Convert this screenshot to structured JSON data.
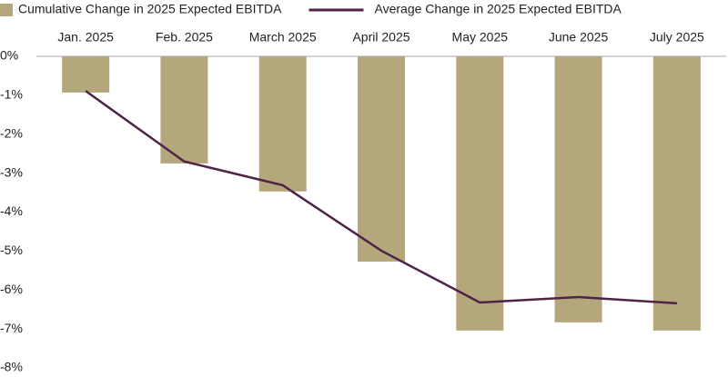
{
  "chart_data": {
    "type": "combo",
    "categories": [
      "Jan. 2025",
      "Feb. 2025",
      "March 2025",
      "April 2025",
      "May 2025",
      "June 2025",
      "July 2025"
    ],
    "series": [
      {
        "name": "Cumulative Change in 2025 Expected EBITDA",
        "type": "bar",
        "color": "#b5a77c",
        "values": [
          -0.93,
          -2.75,
          -3.47,
          -5.27,
          -7.04,
          -6.83,
          -7.04
        ]
      },
      {
        "name": "Average Change in 2025 Expected EBITDA",
        "type": "line",
        "color": "#4f2346",
        "values": [
          -0.89,
          -2.7,
          -3.31,
          -4.99,
          -6.32,
          -6.18,
          -6.34
        ]
      }
    ],
    "ylim": [
      -8,
      0
    ],
    "yticks": [
      {
        "value": 0,
        "label": "0%"
      },
      {
        "value": -1,
        "label": "-1%"
      },
      {
        "value": -2,
        "label": "-2%"
      },
      {
        "value": -3,
        "label": "-3%"
      },
      {
        "value": -4,
        "label": "-4%"
      },
      {
        "value": -5,
        "label": "-5%"
      },
      {
        "value": -6,
        "label": "-6%"
      },
      {
        "value": -7,
        "label": "-7%"
      },
      {
        "value": -8,
        "label": "-8%"
      }
    ],
    "grid": false,
    "legend": "top"
  }
}
